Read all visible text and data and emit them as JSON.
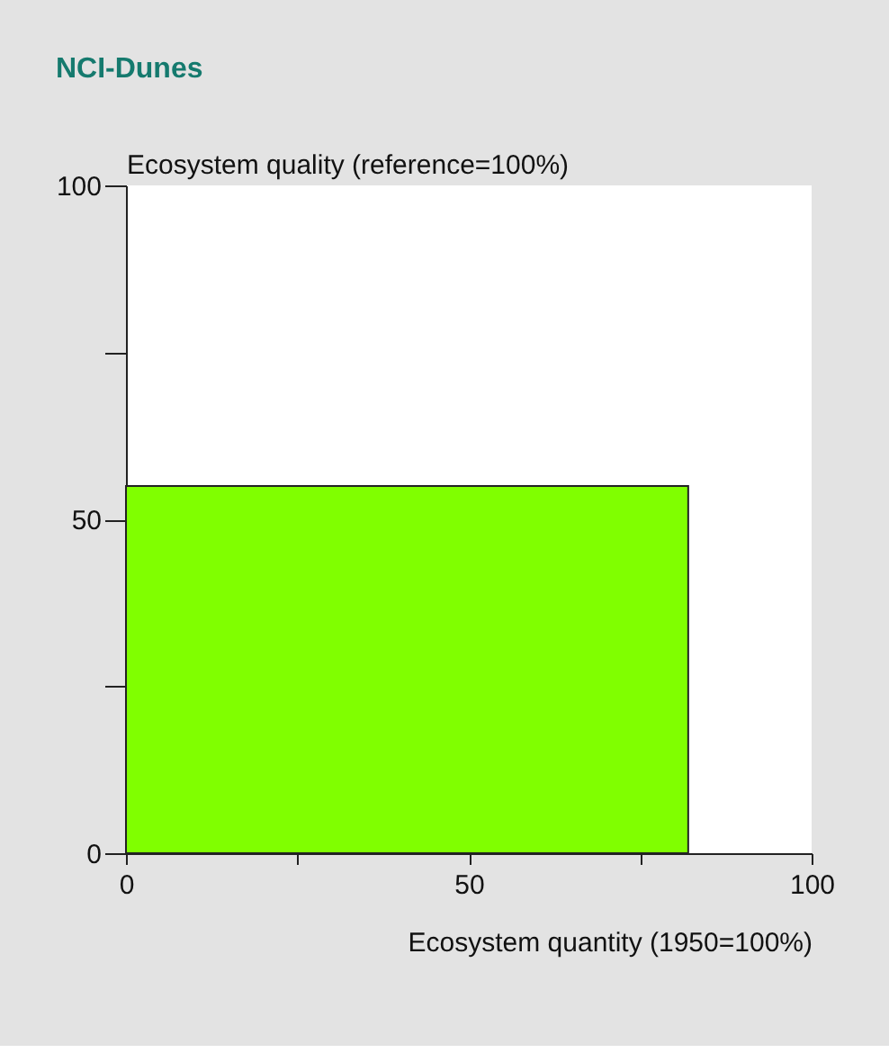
{
  "chart_data": {
    "type": "area",
    "title": "NCI-Dunes",
    "xlabel": "Ecosystem quantity (1950=100%)",
    "ylabel": "Ecosystem quality (reference=100%)",
    "x": [
      0,
      82
    ],
    "values": [
      55,
      55
    ],
    "color": "#80ff00",
    "xlim": [
      0,
      100
    ],
    "ylim": [
      0,
      100
    ],
    "xticks": [
      0,
      {
        "value": 25,
        "label": null
      },
      50,
      {
        "value": 75,
        "label": null
      },
      100
    ],
    "yticks": [
      0,
      {
        "value": 25,
        "label": null
      },
      50,
      {
        "value": 75,
        "label": null
      },
      100
    ],
    "grid": false
  }
}
